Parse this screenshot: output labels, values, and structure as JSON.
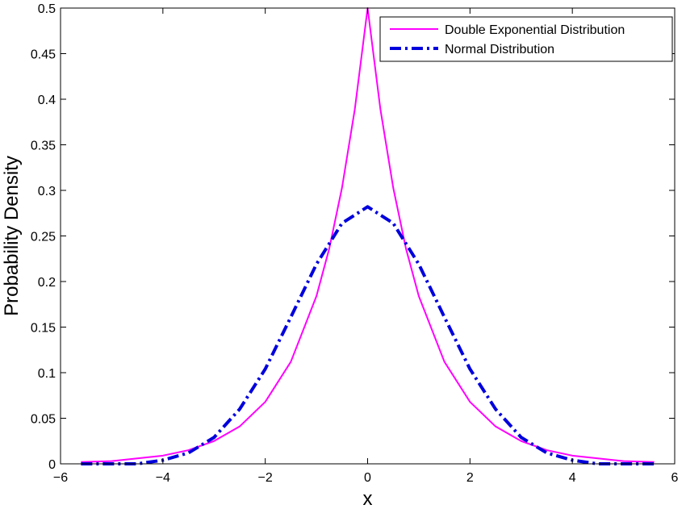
{
  "chart_data": {
    "type": "line",
    "title": "",
    "xlabel": "x",
    "ylabel": "Probability Density",
    "xlim": [
      -6,
      6
    ],
    "ylim": [
      0,
      0.5
    ],
    "x_ticks": [
      -6,
      -4,
      -2,
      0,
      2,
      4,
      6
    ],
    "x_tick_labels": [
      "−6",
      "−4",
      "−2",
      "0",
      "2",
      "4",
      "6"
    ],
    "y_ticks": [
      0,
      0.05,
      0.1,
      0.15,
      0.2,
      0.25,
      0.3,
      0.35,
      0.4,
      0.45,
      0.5
    ],
    "y_tick_labels": [
      "0",
      "0.05",
      "0.1",
      "0.15",
      "0.2",
      "0.25",
      "0.3",
      "0.35",
      "0.4",
      "0.45",
      "0.5"
    ],
    "grid": false,
    "legend_position": "top-right",
    "series": [
      {
        "name": "Double Exponential Distribution",
        "color": "#ff00ff",
        "style": "solid",
        "x": [
          -5.6,
          -5.0,
          -4.5,
          -4.0,
          -3.5,
          -3.0,
          -2.5,
          -2.0,
          -1.5,
          -1.0,
          -0.75,
          -0.5,
          -0.25,
          0.0,
          0.25,
          0.5,
          0.75,
          1.0,
          1.5,
          2.0,
          2.5,
          3.0,
          3.5,
          4.0,
          4.5,
          5.0,
          5.6
        ],
        "values": [
          0.002,
          0.003,
          0.006,
          0.009,
          0.015,
          0.025,
          0.041,
          0.068,
          0.112,
          0.184,
          0.236,
          0.303,
          0.389,
          0.5,
          0.389,
          0.303,
          0.236,
          0.184,
          0.112,
          0.068,
          0.041,
          0.025,
          0.015,
          0.009,
          0.006,
          0.003,
          0.002
        ]
      },
      {
        "name": "Normal Distribution",
        "color": "#0000dd",
        "style": "dash-dot",
        "x": [
          -5.6,
          -5.0,
          -4.5,
          -4.0,
          -3.5,
          -3.0,
          -2.5,
          -2.0,
          -1.5,
          -1.0,
          -0.5,
          0.0,
          0.5,
          1.0,
          1.5,
          2.0,
          2.5,
          3.0,
          3.5,
          4.0,
          4.5,
          5.0,
          5.6
        ],
        "values": [
          0.0,
          0.0,
          0.0,
          0.004,
          0.012,
          0.029,
          0.06,
          0.104,
          0.161,
          0.219,
          0.264,
          0.282,
          0.264,
          0.219,
          0.161,
          0.104,
          0.06,
          0.029,
          0.012,
          0.004,
          0.0,
          0.0,
          0.0
        ]
      }
    ]
  }
}
